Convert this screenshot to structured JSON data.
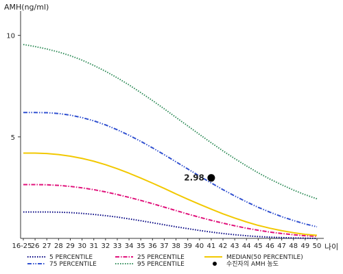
{
  "chart_data": {
    "type": "line",
    "ylabel": "AMH(ng/ml)",
    "xlabel": "나이",
    "ylim": [
      0,
      11
    ],
    "yticks": [
      5,
      10
    ],
    "x": [
      "16-25",
      "26",
      "27",
      "28",
      "29",
      "30",
      "31",
      "32",
      "33",
      "34",
      "35",
      "36",
      "37",
      "38",
      "39",
      "40",
      "41",
      "42",
      "43",
      "44",
      "45",
      "46",
      "47",
      "48",
      "49",
      "50"
    ],
    "grid": false,
    "legend_position": "bottom",
    "series": [
      {
        "name": "5 PERCENTILE",
        "color": "#000080",
        "style": "dotted",
        "values": [
          1.3,
          1.3,
          1.3,
          1.29,
          1.27,
          1.23,
          1.18,
          1.12,
          1.05,
          0.96,
          0.87,
          0.77,
          0.67,
          0.57,
          0.48,
          0.39,
          0.31,
          0.24,
          0.18,
          0.13,
          0.09,
          0.06,
          0.04,
          0.02,
          0.01,
          0.0
        ]
      },
      {
        "name": "25 PERCENTILE",
        "color": "#e0107a",
        "style": "dashdot",
        "values": [
          2.65,
          2.65,
          2.64,
          2.61,
          2.56,
          2.49,
          2.4,
          2.29,
          2.16,
          2.02,
          1.87,
          1.71,
          1.54,
          1.37,
          1.2,
          1.04,
          0.89,
          0.75,
          0.62,
          0.5,
          0.4,
          0.31,
          0.24,
          0.18,
          0.13,
          0.1
        ]
      },
      {
        "name": "MEDIAN(50 PERCENTILE)",
        "color": "#f2c800",
        "style": "solid",
        "values": [
          4.2,
          4.2,
          4.18,
          4.13,
          4.05,
          3.94,
          3.8,
          3.63,
          3.43,
          3.21,
          2.97,
          2.72,
          2.46,
          2.19,
          1.93,
          1.68,
          1.44,
          1.21,
          1.0,
          0.81,
          0.64,
          0.5,
          0.38,
          0.28,
          0.2,
          0.15
        ]
      },
      {
        "name": "75 PERCENTILE",
        "color": "#3050d0",
        "style": "dashdotdot",
        "values": [
          6.2,
          6.2,
          6.19,
          6.15,
          6.07,
          5.95,
          5.79,
          5.59,
          5.35,
          5.08,
          4.78,
          4.46,
          4.12,
          3.77,
          3.42,
          3.07,
          2.73,
          2.4,
          2.09,
          1.8,
          1.53,
          1.29,
          1.07,
          0.88,
          0.71,
          0.57
        ]
      },
      {
        "name": "95 PERCENTILE",
        "color": "#2e8b57",
        "style": "dotted",
        "values": [
          9.55,
          9.45,
          9.33,
          9.18,
          9.0,
          8.78,
          8.52,
          8.23,
          7.91,
          7.56,
          7.18,
          6.79,
          6.38,
          5.96,
          5.54,
          5.12,
          4.71,
          4.31,
          3.93,
          3.57,
          3.23,
          2.92,
          2.64,
          2.38,
          2.15,
          1.95
        ]
      }
    ],
    "point": {
      "name": "수진자의 AMH 농도",
      "x": "41",
      "y": 2.98,
      "label": "2.98",
      "color": "#000000"
    }
  }
}
